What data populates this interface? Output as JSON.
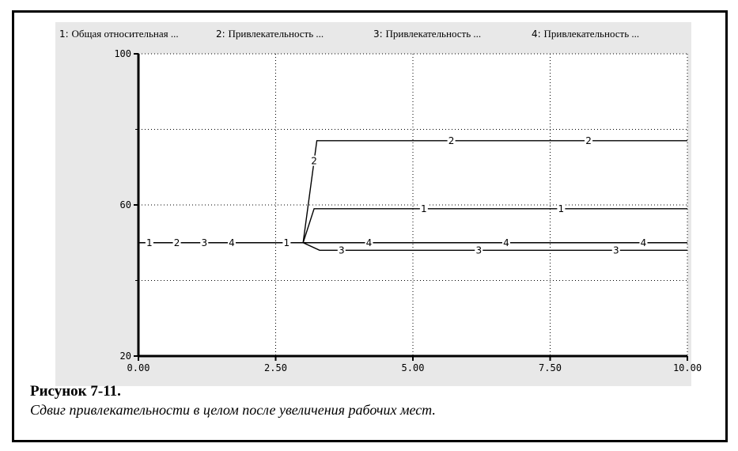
{
  "chart_data": {
    "type": "line",
    "title": "",
    "xlabel": "",
    "ylabel": "",
    "xlim": [
      0,
      10
    ],
    "ylim": [
      20,
      100
    ],
    "x_ticks": [
      "0.00",
      "2.50",
      "5.00",
      "7.50",
      "10.00"
    ],
    "y_ticks": [
      "100",
      "60",
      "20"
    ],
    "grid": true,
    "legend_position": "top",
    "legend": [
      {
        "id": "1",
        "text": "Общая относительная ..."
      },
      {
        "id": "2",
        "text": "Привлекательность  ..."
      },
      {
        "id": "3",
        "text": "Привлекательность ..."
      },
      {
        "id": "4",
        "text": "Привлекательность  ..."
      }
    ],
    "series": [
      {
        "marker": "1",
        "x": [
          0,
          3.0,
          3.2,
          10
        ],
        "y": [
          50,
          50,
          59,
          59
        ],
        "marker_x": [
          0.2,
          2.7,
          5.2,
          7.7
        ]
      },
      {
        "marker": "2",
        "x": [
          0,
          3.0,
          3.25,
          10
        ],
        "y": [
          50,
          50,
          77,
          77
        ],
        "marker_x": [
          0.7,
          3.2,
          5.7,
          8.2
        ]
      },
      {
        "marker": "3",
        "x": [
          0,
          3.0,
          3.3,
          10
        ],
        "y": [
          50,
          50,
          48,
          48
        ],
        "marker_x": [
          1.2,
          3.7,
          6.2,
          8.7
        ]
      },
      {
        "marker": "4",
        "x": [
          0,
          10
        ],
        "y": [
          50,
          50
        ],
        "marker_x": [
          1.7,
          4.2,
          6.7,
          9.2
        ]
      }
    ]
  },
  "caption": {
    "title": "Рисунок 7-11.",
    "text": "Сдвиг привлекательности в целом после увеличения рабочих мест."
  }
}
